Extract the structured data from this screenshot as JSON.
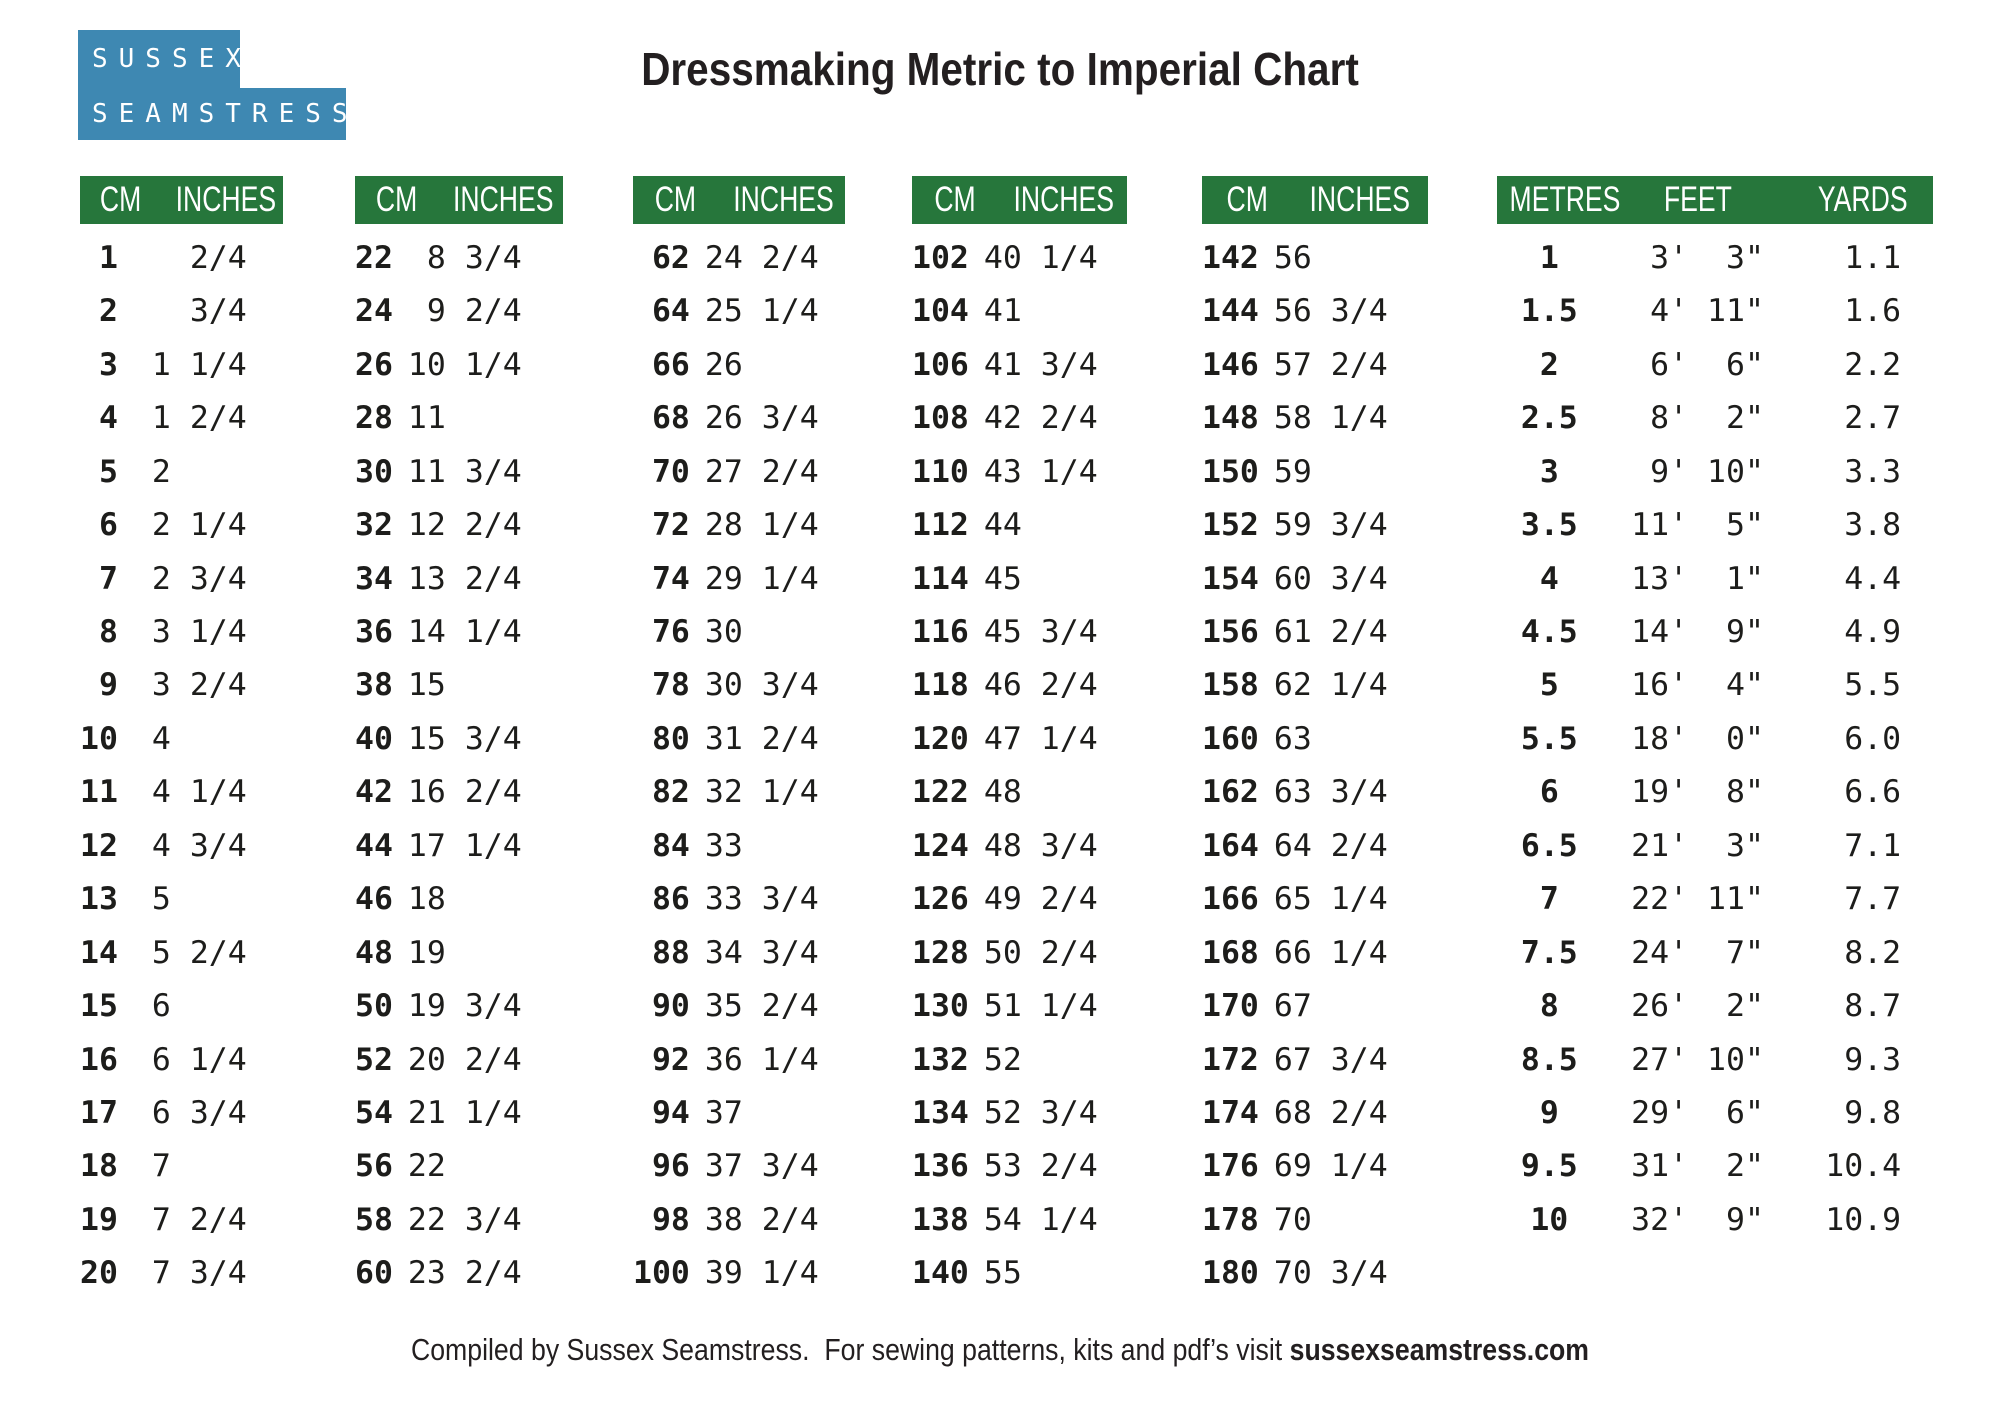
{
  "page": {
    "title": "Dressmaking Metric to Imperial Chart",
    "logo_line1": "SUSSEX",
    "logo_line2": "SEAMSTRESS",
    "footer_text": "Compiled by Sussex Seamstress.  For sewing patterns, kits and pdf’s visit ",
    "footer_site": "sussexseamstress.com"
  },
  "colors": {
    "header_green": "#26763b",
    "logo_blue": "#3e88b2",
    "text_black": "#1d1d1b"
  },
  "cm_tables": [
    {
      "headers": [
        "CM",
        "INCHES"
      ],
      "rows": [
        [
          "1",
          "   2/4"
        ],
        [
          "2",
          "   3/4"
        ],
        [
          "3",
          " 1 1/4"
        ],
        [
          "4",
          " 1 2/4"
        ],
        [
          "5",
          " 2"
        ],
        [
          "6",
          " 2 1/4"
        ],
        [
          "7",
          " 2 3/4"
        ],
        [
          "8",
          " 3 1/4"
        ],
        [
          "9",
          " 3 2/4"
        ],
        [
          "10",
          " 4"
        ],
        [
          "11",
          " 4 1/4"
        ],
        [
          "12",
          " 4 3/4"
        ],
        [
          "13",
          " 5"
        ],
        [
          "14",
          " 5 2/4"
        ],
        [
          "15",
          " 6"
        ],
        [
          "16",
          " 6 1/4"
        ],
        [
          "17",
          " 6 3/4"
        ],
        [
          "18",
          " 7"
        ],
        [
          "19",
          " 7 2/4"
        ],
        [
          "20",
          " 7 3/4"
        ]
      ]
    },
    {
      "headers": [
        "CM",
        "INCHES"
      ],
      "rows": [
        [
          "22",
          " 8 3/4"
        ],
        [
          "24",
          " 9 2/4"
        ],
        [
          "26",
          "10 1/4"
        ],
        [
          "28",
          "11"
        ],
        [
          "30",
          "11 3/4"
        ],
        [
          "32",
          "12 2/4"
        ],
        [
          "34",
          "13 2/4"
        ],
        [
          "36",
          "14 1/4"
        ],
        [
          "38",
          "15"
        ],
        [
          "40",
          "15 3/4"
        ],
        [
          "42",
          "16 2/4"
        ],
        [
          "44",
          "17 1/4"
        ],
        [
          "46",
          "18"
        ],
        [
          "48",
          "19"
        ],
        [
          "50",
          "19 3/4"
        ],
        [
          "52",
          "20 2/4"
        ],
        [
          "54",
          "21 1/4"
        ],
        [
          "56",
          "22"
        ],
        [
          "58",
          "22 3/4"
        ],
        [
          "60",
          "23 2/4"
        ]
      ]
    },
    {
      "headers": [
        "CM",
        "INCHES"
      ],
      "rows": [
        [
          "62",
          "24 2/4"
        ],
        [
          "64",
          "25 1/4"
        ],
        [
          "66",
          "26"
        ],
        [
          "68",
          "26 3/4"
        ],
        [
          "70",
          "27 2/4"
        ],
        [
          "72",
          "28 1/4"
        ],
        [
          "74",
          "29 1/4"
        ],
        [
          "76",
          "30"
        ],
        [
          "78",
          "30 3/4"
        ],
        [
          "80",
          "31 2/4"
        ],
        [
          "82",
          "32 1/4"
        ],
        [
          "84",
          "33"
        ],
        [
          "86",
          "33 3/4"
        ],
        [
          "88",
          "34 3/4"
        ],
        [
          "90",
          "35 2/4"
        ],
        [
          "92",
          "36 1/4"
        ],
        [
          "94",
          "37"
        ],
        [
          "96",
          "37 3/4"
        ],
        [
          "98",
          "38 2/4"
        ],
        [
          "100",
          "39 1/4"
        ]
      ]
    },
    {
      "headers": [
        "CM",
        "INCHES"
      ],
      "rows": [
        [
          "102",
          "40 1/4"
        ],
        [
          "104",
          "41"
        ],
        [
          "106",
          "41 3/4"
        ],
        [
          "108",
          "42 2/4"
        ],
        [
          "110",
          "43 1/4"
        ],
        [
          "112",
          "44"
        ],
        [
          "114",
          "45"
        ],
        [
          "116",
          "45 3/4"
        ],
        [
          "118",
          "46 2/4"
        ],
        [
          "120",
          "47 1/4"
        ],
        [
          "122",
          "48"
        ],
        [
          "124",
          "48 3/4"
        ],
        [
          "126",
          "49 2/4"
        ],
        [
          "128",
          "50 2/4"
        ],
        [
          "130",
          "51 1/4"
        ],
        [
          "132",
          "52"
        ],
        [
          "134",
          "52 3/4"
        ],
        [
          "136",
          "53 2/4"
        ],
        [
          "138",
          "54 1/4"
        ],
        [
          "140",
          "55"
        ]
      ]
    },
    {
      "headers": [
        "CM",
        "INCHES"
      ],
      "rows": [
        [
          "142",
          "56"
        ],
        [
          "144",
          "56 3/4"
        ],
        [
          "146",
          "57 2/4"
        ],
        [
          "148",
          "58 1/4"
        ],
        [
          "150",
          "59"
        ],
        [
          "152",
          "59 3/4"
        ],
        [
          "154",
          "60 3/4"
        ],
        [
          "156",
          "61 2/4"
        ],
        [
          "158",
          "62 1/4"
        ],
        [
          "160",
          "63"
        ],
        [
          "162",
          "63 3/4"
        ],
        [
          "164",
          "64 2/4"
        ],
        [
          "166",
          "65 1/4"
        ],
        [
          "168",
          "66 1/4"
        ],
        [
          "170",
          "67"
        ],
        [
          "172",
          "67 3/4"
        ],
        [
          "174",
          "68 2/4"
        ],
        [
          "176",
          "69 1/4"
        ],
        [
          "178",
          "70"
        ],
        [
          "180",
          "70 3/4"
        ]
      ]
    }
  ],
  "metres_table": {
    "headers": [
      "METRES",
      "FEET",
      "YARDS"
    ],
    "rows": [
      [
        "1",
        " 3'  3\"",
        " 1.1"
      ],
      [
        "1.5",
        " 4' 11\"",
        " 1.6"
      ],
      [
        "2",
        " 6'  6\"",
        " 2.2"
      ],
      [
        "2.5",
        " 8'  2\"",
        " 2.7"
      ],
      [
        "3",
        " 9' 10\"",
        " 3.3"
      ],
      [
        "3.5",
        "11'  5\"",
        " 3.8"
      ],
      [
        "4",
        "13'  1\"",
        " 4.4"
      ],
      [
        "4.5",
        "14'  9\"",
        " 4.9"
      ],
      [
        "5",
        "16'  4\"",
        " 5.5"
      ],
      [
        "5.5",
        "18'  0\"",
        " 6.0"
      ],
      [
        "6",
        "19'  8\"",
        " 6.6"
      ],
      [
        "6.5",
        "21'  3\"",
        " 7.1"
      ],
      [
        "7",
        "22' 11\"",
        " 7.7"
      ],
      [
        "7.5",
        "24'  7\"",
        " 8.2"
      ],
      [
        "8",
        "26'  2\"",
        " 8.7"
      ],
      [
        "8.5",
        "27' 10\"",
        " 9.3"
      ],
      [
        "9",
        "29'  6\"",
        " 9.8"
      ],
      [
        "9.5",
        "31'  2\"",
        "10.4"
      ],
      [
        "10",
        "32'  9\"",
        "10.9"
      ]
    ]
  }
}
